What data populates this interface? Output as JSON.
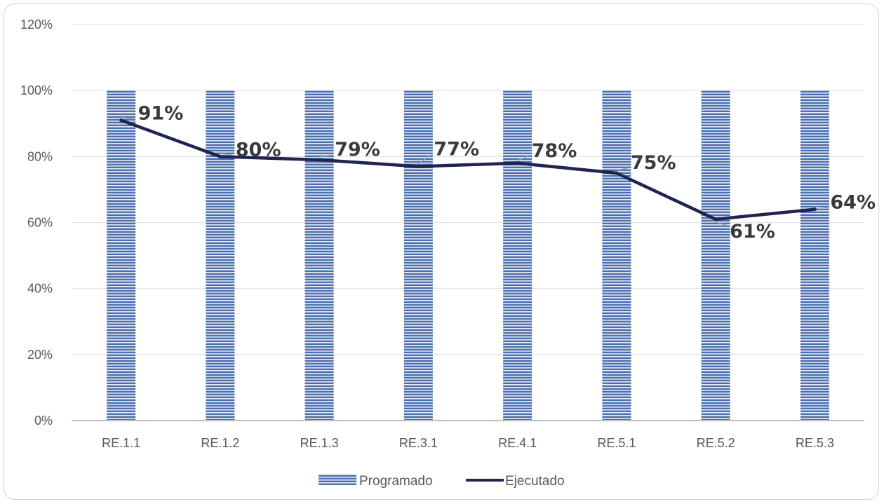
{
  "chart_data": {
    "type": "bar",
    "categories": [
      "RE.1.1",
      "RE.1.2",
      "RE.1.3",
      "RE.3.1",
      "RE.4.1",
      "RE.5.1",
      "RE.5.2",
      "RE.5.3"
    ],
    "series": [
      {
        "name": "Programado",
        "kind": "bar",
        "values": [
          100,
          100,
          100,
          100,
          100,
          100,
          100,
          100
        ],
        "color": "#4e6fae",
        "pattern": "horizontal-stripes"
      },
      {
        "name": "Ejecutado",
        "kind": "line",
        "values": [
          91,
          80,
          79,
          77,
          78,
          75,
          61,
          64
        ],
        "color": "#1f2451"
      }
    ],
    "data_labels": [
      "91%",
      "80%",
      "79%",
      "77%",
      "78%",
      "75%",
      "61%",
      "64%"
    ],
    "ylim": [
      0,
      120
    ],
    "y_ticks": [
      0,
      20,
      40,
      60,
      80,
      100,
      120
    ],
    "y_tick_labels": [
      "0%",
      "20%",
      "40%",
      "60%",
      "80%",
      "100%",
      "120%"
    ],
    "grid": true,
    "legend_position": "bottom",
    "title": "",
    "xlabel": "",
    "ylabel": ""
  }
}
